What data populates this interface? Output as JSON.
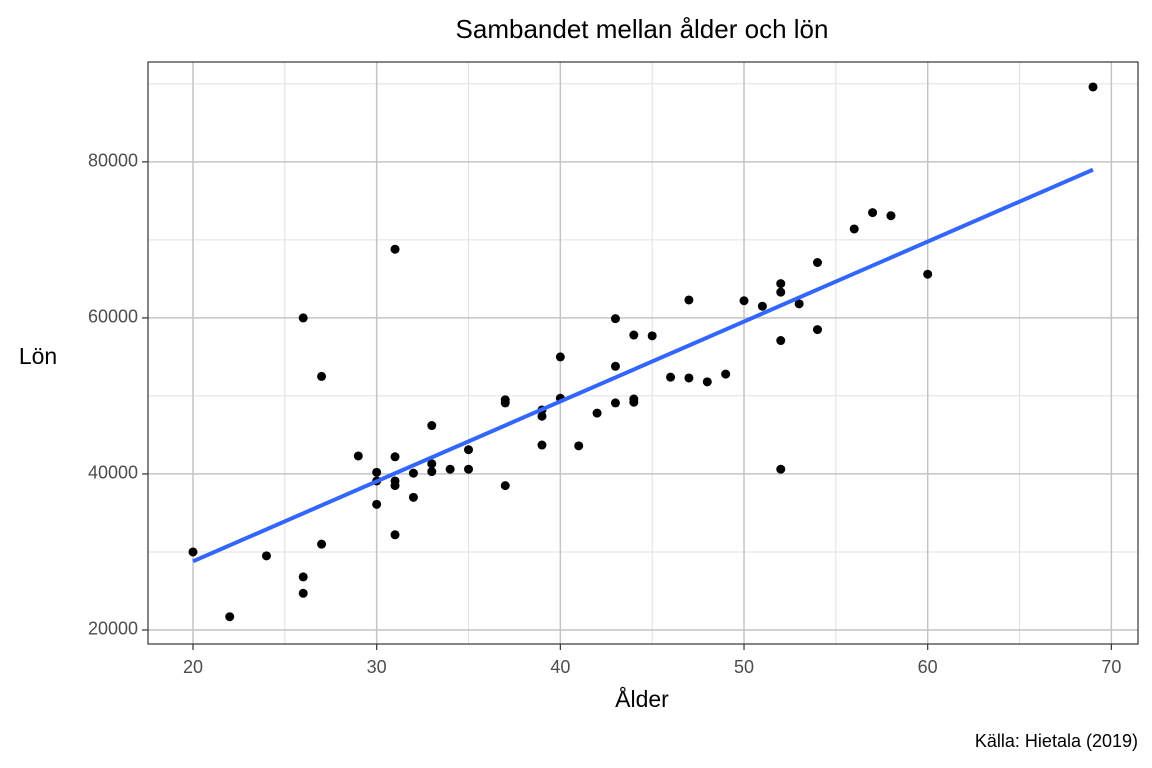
{
  "chart_data": {
    "type": "scatter",
    "title": "Sambandet mellan ålder och lön",
    "x_label": "Ålder",
    "y_label": "Lön",
    "caption": "Källa: Hietala (2019)",
    "color": "#000000",
    "x": [
      20,
      22,
      24,
      26,
      26,
      26,
      27,
      27,
      29,
      30,
      30,
      30,
      31,
      31,
      31,
      31,
      31,
      32,
      32,
      33,
      33,
      33,
      34,
      35,
      35,
      37,
      37,
      37,
      39,
      39,
      39,
      40,
      40,
      41,
      42,
      43,
      43,
      43,
      44,
      44,
      44,
      45,
      46,
      47,
      47,
      48,
      49,
      50,
      51,
      52,
      52,
      52,
      52,
      53,
      54,
      54,
      56,
      57,
      58,
      60,
      69
    ],
    "values": [
      30000,
      21700,
      29500,
      60000,
      26800,
      24700,
      52500,
      31000,
      42300,
      40200,
      39100,
      36100,
      68800,
      42200,
      39100,
      38500,
      32200,
      40100,
      37000,
      46200,
      41300,
      40300,
      40600,
      43100,
      40600,
      49500,
      49100,
      38500,
      48200,
      47400,
      43700,
      55000,
      49700,
      43600,
      47800,
      59900,
      53800,
      49100,
      57800,
      49600,
      49200,
      57700,
      52400,
      62300,
      52300,
      51800,
      52800,
      62200,
      61500,
      64400,
      63300,
      57100,
      40600,
      61800,
      67100,
      58500,
      71400,
      73500,
      73100,
      65600,
      89600
    ],
    "trend": {
      "x": [
        20,
        69
      ],
      "values": [
        28800,
        79000
      ],
      "color": "#3366ff"
    },
    "xlim": [
      17.55,
      71.45
    ],
    "xticks": [
      20,
      30,
      40,
      50,
      60,
      70
    ],
    "xminor": [
      25,
      35,
      45,
      55,
      65
    ],
    "ylim": [
      18200,
      92800
    ],
    "yticks": [
      20000,
      40000,
      60000,
      80000
    ],
    "yminor": [
      30000,
      50000,
      70000,
      90000
    ],
    "grid": true
  }
}
